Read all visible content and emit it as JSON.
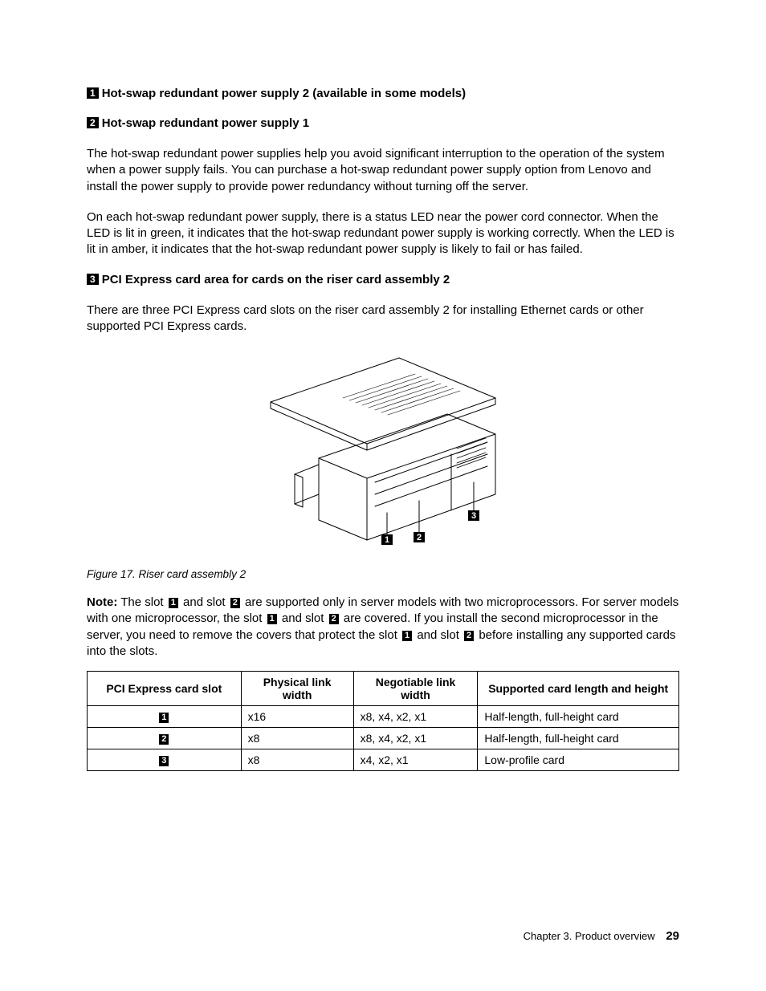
{
  "headings": {
    "h1": {
      "num": "1",
      "text": "Hot-swap redundant power supply 2 (available in some models)"
    },
    "h2": {
      "num": "2",
      "text": "Hot-swap redundant power supply 1"
    },
    "h3": {
      "num": "3",
      "text": "PCI Express card area for cards on the riser card assembly 2"
    }
  },
  "paragraphs": {
    "p1": "The hot-swap redundant power supplies help you avoid significant interruption to the operation of the system when a power supply fails. You can purchase a hot-swap redundant power supply option from Lenovo and install the power supply to provide power redundancy without turning off the server.",
    "p2": "On each hot-swap redundant power supply, there is a status LED near the power cord connector. When the LED is lit in green, it indicates that the hot-swap redundant power supply is working correctly. When the LED is lit in amber, it indicates that the hot-swap redundant power supply is likely to fail or has failed.",
    "p3": "There are three PCI Express card slots on the riser card assembly 2 for installing Ethernet cards or other supported PCI Express cards."
  },
  "figure": {
    "caption": "Figure 17.  Riser card assembly 2",
    "callouts": {
      "c1": "1",
      "c2": "2",
      "c3": "3"
    }
  },
  "note": {
    "label": "Note:",
    "seg1": " The slot ",
    "n1": "1",
    "seg2": " and slot ",
    "n2": "2",
    "seg3": " are supported only in server models with two microprocessors. For server models with one microprocessor, the slot ",
    "n3": "1",
    "seg4": " and slot ",
    "n4": "2",
    "seg5": " are covered. If you install the second microprocessor in the server, you need to remove the covers that protect the slot ",
    "n5": "1",
    "seg6": " and slot ",
    "n6": "2",
    "seg7": " before installing any supported cards into the slots."
  },
  "table": {
    "headers": {
      "col1": "PCI Express card slot",
      "col2": "Physical link width",
      "col3": "Negotiable link width",
      "col4": "Supported card length and height"
    },
    "rows": [
      {
        "slot": "1",
        "phys": "x16",
        "neg": "x8, x4, x2, x1",
        "sup": "Half-length, full-height card"
      },
      {
        "slot": "2",
        "phys": "x8",
        "neg": "x8, x4, x2, x1",
        "sup": "Half-length, full-height card"
      },
      {
        "slot": "3",
        "phys": "x8",
        "neg": "x4, x2, x1",
        "sup": "Low-profile card"
      }
    ]
  },
  "footer": {
    "chapter": "Chapter 3.  Product overview",
    "page": "29"
  },
  "style": {
    "text_color": "#000000",
    "background": "#ffffff",
    "callout_bg": "#000000",
    "callout_fg": "#ffffff",
    "table_col_widths": [
      "26%",
      "19%",
      "21%",
      "34%"
    ]
  }
}
